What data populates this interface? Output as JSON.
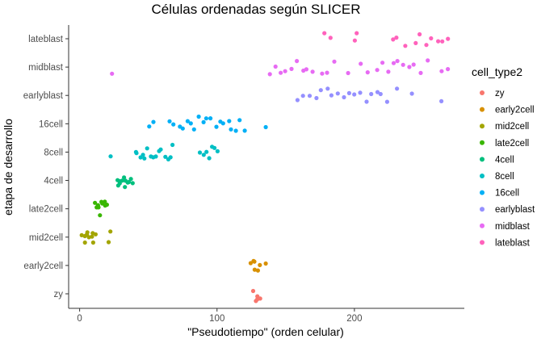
{
  "chart_data": {
    "type": "scatter",
    "title": "Células ordenadas según SLICER",
    "xlabel": "\"Pseudotiempo\" (orden celular)",
    "ylabel": "etapa de desarrollo",
    "xlim": [
      -8,
      280
    ],
    "x_ticks": [
      0,
      100,
      200
    ],
    "categories": [
      "zy",
      "early2cell",
      "mid2cell",
      "late2cell",
      "4cell",
      "8cell",
      "16cell",
      "earlyblast",
      "midblast",
      "lateblast"
    ],
    "legend": {
      "title": "cell_type2",
      "position": "right",
      "entries": [
        "zy",
        "early2cell",
        "mid2cell",
        "late2cell",
        "4cell",
        "8cell",
        "16cell",
        "earlyblast",
        "midblast",
        "lateblast"
      ]
    },
    "grid": false,
    "point_style": "jittered dots within each category",
    "colors": {
      "zy": "#F8766D",
      "early2cell": "#D89000",
      "mid2cell": "#A3A500",
      "late2cell": "#39B600",
      "4cell": "#00BF7D",
      "8cell": "#00BFC4",
      "16cell": "#00B0F6",
      "earlyblast": "#9590FF",
      "midblast": "#E76BF3",
      "lateblast": "#FF62BC"
    },
    "series": [
      {
        "name": "zy",
        "x": [
          126,
          128,
          129,
          130,
          131
        ],
        "y": [
          "zy",
          "zy",
          "zy",
          "zy",
          "zy"
        ]
      },
      {
        "name": "early2cell",
        "x": [
          124,
          126,
          127,
          128,
          129,
          132,
          135
        ],
        "y": [
          "early2cell",
          "early2cell",
          "early2cell",
          "early2cell",
          "early2cell",
          "early2cell",
          "early2cell"
        ]
      },
      {
        "name": "mid2cell",
        "x": [
          2,
          3,
          4,
          5,
          6,
          7,
          8,
          9,
          10,
          11,
          21,
          22
        ],
        "y": [
          "mid2cell",
          "mid2cell",
          "mid2cell",
          "mid2cell",
          "mid2cell",
          "mid2cell",
          "mid2cell",
          "mid2cell",
          "mid2cell",
          "mid2cell",
          "mid2cell",
          "mid2cell"
        ]
      },
      {
        "name": "late2cell",
        "x": [
          11,
          12,
          13,
          14,
          15,
          16,
          17,
          18,
          19,
          20
        ],
        "y": [
          "late2cell",
          "late2cell",
          "late2cell",
          "late2cell",
          "late2cell",
          "late2cell",
          "late2cell",
          "late2cell",
          "late2cell",
          "late2cell"
        ]
      },
      {
        "name": "4cell",
        "x": [
          27,
          28,
          29,
          30,
          31,
          32,
          33,
          34,
          35,
          36,
          37,
          38
        ],
        "y": [
          "4cell",
          "4cell",
          "4cell",
          "4cell",
          "4cell",
          "4cell",
          "4cell",
          "4cell",
          "4cell",
          "4cell",
          "4cell",
          "4cell"
        ]
      },
      {
        "name": "8cell",
        "x": [
          23,
          40,
          42,
          44,
          46,
          48,
          50,
          52,
          54,
          56,
          58,
          60,
          62,
          64,
          66,
          68,
          88,
          90,
          92,
          94,
          96,
          98,
          100
        ],
        "y": [
          "8cell",
          "8cell",
          "8cell",
          "8cell",
          "8cell",
          "8cell",
          "8cell",
          "8cell",
          "8cell",
          "8cell",
          "8cell",
          "8cell",
          "8cell",
          "8cell",
          "8cell",
          "8cell",
          "8cell",
          "8cell",
          "8cell",
          "8cell",
          "8cell",
          "8cell",
          "8cell"
        ]
      },
      {
        "name": "16cell",
        "x": [
          51,
          54,
          66,
          69,
          72,
          75,
          78,
          81,
          84,
          87,
          90,
          93,
          96,
          99,
          102,
          105,
          108,
          111,
          114,
          117,
          120,
          136
        ],
        "y": [
          "16cell",
          "16cell",
          "16cell",
          "16cell",
          "16cell",
          "16cell",
          "16cell",
          "16cell",
          "16cell",
          "16cell",
          "16cell",
          "16cell",
          "16cell",
          "16cell",
          "16cell",
          "16cell",
          "16cell",
          "16cell",
          "16cell",
          "16cell",
          "16cell",
          "16cell"
        ]
      },
      {
        "name": "earlyblast",
        "x": [
          159,
          163,
          167,
          172,
          176,
          180,
          184,
          188,
          192,
          196,
          200,
          204,
          208,
          212,
          216,
          220,
          224,
          230,
          242,
          264
        ],
        "y": [
          "earlyblast",
          "earlyblast",
          "earlyblast",
          "earlyblast",
          "earlyblast",
          "earlyblast",
          "earlyblast",
          "earlyblast",
          "earlyblast",
          "earlyblast",
          "earlyblast",
          "earlyblast",
          "earlyblast",
          "earlyblast",
          "earlyblast",
          "earlyblast",
          "earlyblast",
          "earlyblast",
          "earlyblast",
          "earlyblast"
        ]
      },
      {
        "name": "midblast",
        "x": [
          24,
          138,
          142,
          146,
          150,
          154,
          158,
          162,
          166,
          170,
          176,
          180,
          186,
          196,
          204,
          210,
          216,
          220,
          224,
          228,
          232,
          236,
          240,
          244,
          248,
          254,
          264,
          268
        ],
        "y": [
          "midblast",
          "midblast",
          "midblast",
          "midblast",
          "midblast",
          "midblast",
          "midblast",
          "midblast",
          "midblast",
          "midblast",
          "midblast",
          "midblast",
          "midblast",
          "midblast",
          "midblast",
          "midblast",
          "midblast",
          "midblast",
          "midblast",
          "midblast",
          "midblast",
          "midblast",
          "midblast",
          "midblast",
          "midblast",
          "midblast",
          "midblast",
          "midblast"
        ]
      },
      {
        "name": "lateblast",
        "x": [
          178,
          182,
          200,
          202,
          228,
          230,
          238,
          244,
          248,
          252,
          256,
          260,
          264,
          268
        ],
        "y": [
          "lateblast",
          "lateblast",
          "lateblast",
          "lateblast",
          "lateblast",
          "lateblast",
          "lateblast",
          "lateblast",
          "lateblast",
          "lateblast",
          "lateblast",
          "lateblast",
          "lateblast",
          "lateblast"
        ]
      }
    ]
  }
}
